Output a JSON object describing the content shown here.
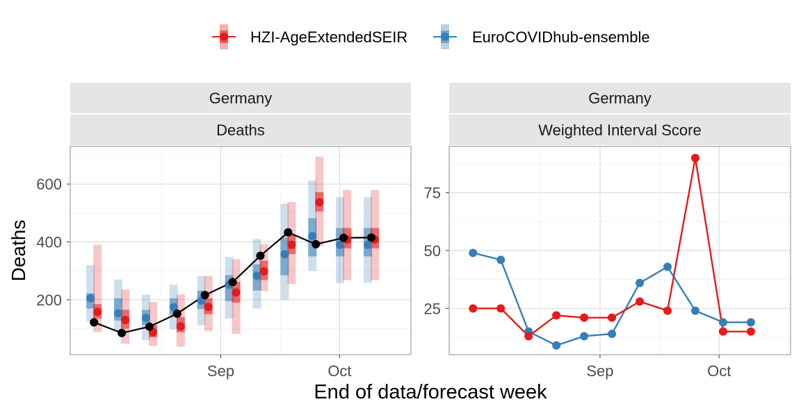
{
  "legend": {
    "items": [
      {
        "label": "HZI-AgeExtendedSEIR",
        "color": "#e41a1c"
      },
      {
        "label": "EuroCOVIDhub-ensemble",
        "color": "#377eb8"
      }
    ]
  },
  "xlabel": "End of data/forecast week",
  "chart_data": [
    {
      "type": "line",
      "strip_top": "Germany",
      "strip_bottom": "Deaths",
      "ylabel": "Deaths",
      "xlim": [
        "2021-07-25",
        "2021-10-19"
      ],
      "ylim": [
        10,
        730
      ],
      "x_ticks": [
        {
          "date": "2021-09-01",
          "label": "Sep"
        },
        {
          "date": "2021-10-01",
          "label": "Oct"
        }
      ],
      "y_ticks": [
        200,
        400,
        600
      ],
      "observed": {
        "color": "#000000",
        "x": [
          "2021-07-31",
          "2021-08-07",
          "2021-08-14",
          "2021-08-21",
          "2021-08-28",
          "2021-09-04",
          "2021-09-11",
          "2021-09-18",
          "2021-09-25",
          "2021-10-02",
          "2021-10-09"
        ],
        "values": [
          122,
          85,
          107,
          152,
          216,
          261,
          352,
          433,
          392,
          414,
          415
        ]
      },
      "series": [
        {
          "name": "EuroCOVIDhub-ensemble",
          "color": "#377eb8",
          "x": [
            "2021-07-31",
            "2021-08-07",
            "2021-08-14",
            "2021-08-21",
            "2021-08-28",
            "2021-09-04",
            "2021-09-11",
            "2021-09-18",
            "2021-09-25",
            "2021-10-02",
            "2021-10-09"
          ],
          "median": [
            205,
            153,
            137,
            174,
            197,
            252,
            283,
            357,
            420,
            390,
            390
          ],
          "inner": [
            [
              170,
              222
            ],
            [
              128,
              205
            ],
            [
              112,
              165
            ],
            [
              148,
              205
            ],
            [
              168,
              232
            ],
            [
              195,
              285
            ],
            [
              232,
              322
            ],
            [
              285,
              415
            ],
            [
              350,
              482
            ],
            [
              350,
              448
            ],
            [
              350,
              448
            ]
          ],
          "outer": [
            [
              125,
              320
            ],
            [
              95,
              270
            ],
            [
              60,
              218
            ],
            [
              98,
              252
            ],
            [
              112,
              282
            ],
            [
              135,
              348
            ],
            [
              170,
              410
            ],
            [
              200,
              532
            ],
            [
              300,
              612
            ],
            [
              258,
              555
            ],
            [
              258,
              555
            ]
          ]
        },
        {
          "name": "HZI-AgeExtendedSEIR",
          "color": "#e41a1c",
          "x": [
            "2021-07-31",
            "2021-08-07",
            "2021-08-14",
            "2021-08-21",
            "2021-08-28",
            "2021-09-04",
            "2021-09-11",
            "2021-09-18",
            "2021-09-25",
            "2021-10-02",
            "2021-10-09"
          ],
          "median": [
            158,
            130,
            88,
            108,
            175,
            225,
            298,
            390,
            537,
            408,
            408
          ],
          "inner": [
            [
              135,
              185
            ],
            [
              100,
              165
            ],
            [
              70,
              112
            ],
            [
              88,
              140
            ],
            [
              150,
              205
            ],
            [
              190,
              262
            ],
            [
              268,
              335
            ],
            [
              358,
              425
            ],
            [
              505,
              572
            ],
            [
              378,
              448
            ],
            [
              378,
              448
            ]
          ],
          "outer": [
            [
              88,
              390
            ],
            [
              48,
              235
            ],
            [
              40,
              192
            ],
            [
              38,
              218
            ],
            [
              92,
              282
            ],
            [
              82,
              340
            ],
            [
              230,
              392
            ],
            [
              255,
              538
            ],
            [
              385,
              695
            ],
            [
              268,
              580
            ],
            [
              268,
              580
            ]
          ]
        }
      ]
    },
    {
      "type": "line",
      "strip_top": "Germany",
      "strip_bottom": "Weighted Interval Score",
      "xlim": [
        "2021-07-25",
        "2021-10-19"
      ],
      "ylim": [
        5,
        95
      ],
      "x_ticks": [
        {
          "date": "2021-09-01",
          "label": "Sep"
        },
        {
          "date": "2021-10-01",
          "label": "Oct"
        }
      ],
      "y_ticks": [
        25,
        50,
        75
      ],
      "series": [
        {
          "name": "EuroCOVIDhub-ensemble",
          "color": "#377eb8",
          "x": [
            "2021-07-31",
            "2021-08-07",
            "2021-08-14",
            "2021-08-21",
            "2021-08-28",
            "2021-09-04",
            "2021-09-11",
            "2021-09-18",
            "2021-09-25",
            "2021-10-02",
            "2021-10-09"
          ],
          "values": [
            49,
            46,
            15,
            9,
            13,
            14,
            36,
            43,
            24,
            19,
            19
          ]
        },
        {
          "name": "HZI-AgeExtendedSEIR",
          "color": "#e41a1c",
          "x": [
            "2021-07-31",
            "2021-08-07",
            "2021-08-14",
            "2021-08-21",
            "2021-08-28",
            "2021-09-04",
            "2021-09-11",
            "2021-09-18",
            "2021-09-25",
            "2021-10-02",
            "2021-10-09"
          ],
          "values": [
            25,
            25,
            13,
            22,
            21,
            21,
            28,
            24,
            90,
            15,
            15
          ]
        }
      ]
    }
  ]
}
